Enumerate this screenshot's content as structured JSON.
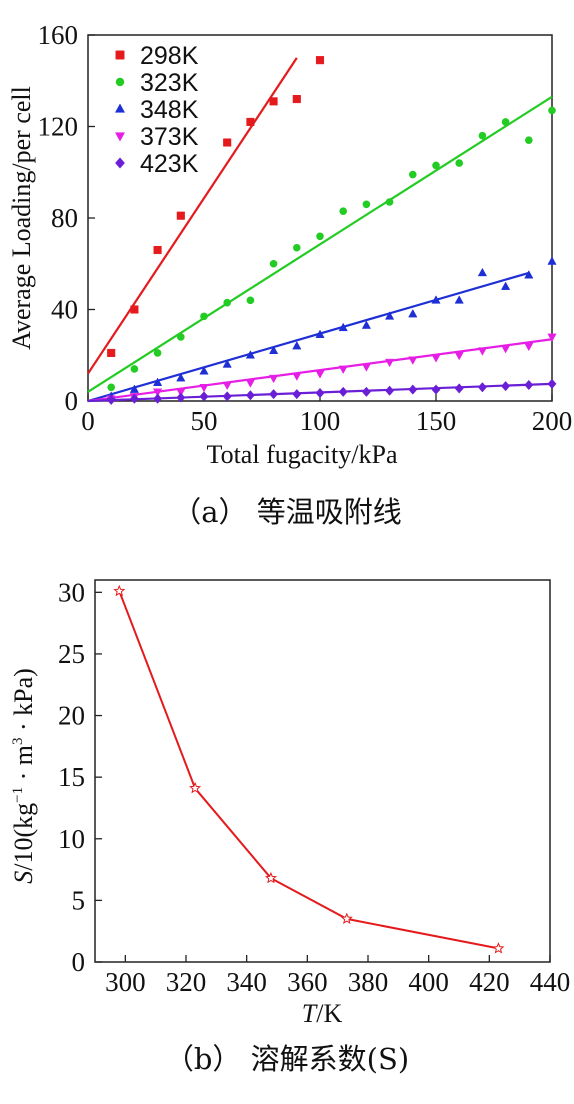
{
  "chart_data": [
    {
      "type": "scatter",
      "panel": "a",
      "caption": "（a）  等温吸附线",
      "xlabel": "Total fugacity/kPa",
      "ylabel": "Average Loading/per cell",
      "xlim": [
        0,
        200
      ],
      "ylim": [
        0,
        160
      ],
      "xticks": [
        0,
        50,
        100,
        150,
        200
      ],
      "yticks": [
        0,
        40,
        80,
        120,
        160
      ],
      "legend_position": "top-left",
      "series": [
        {
          "name": "298K",
          "marker": "square",
          "color": "#e41a1c",
          "x": [
            10,
            20,
            30,
            40,
            60,
            70,
            80,
            90,
            100
          ],
          "y": [
            21,
            40,
            66,
            81,
            113,
            122,
            131,
            132,
            149
          ],
          "fit_line": {
            "x": [
              0,
              90
            ],
            "y": [
              12,
              150
            ]
          }
        },
        {
          "name": "323K",
          "marker": "circle",
          "color": "#22cc22",
          "x": [
            10,
            20,
            30,
            40,
            50,
            60,
            70,
            80,
            90,
            100,
            110,
            120,
            130,
            140,
            150,
            160,
            170,
            180,
            190,
            200
          ],
          "y": [
            6,
            14,
            21,
            28,
            37,
            43,
            44,
            60,
            67,
            72,
            83,
            86,
            87,
            99,
            103,
            104,
            116,
            122,
            114,
            127
          ],
          "fit_line": {
            "x": [
              0,
              200
            ],
            "y": [
              4,
              133
            ]
          }
        },
        {
          "name": "348K",
          "marker": "triangle-up",
          "color": "#1f2fd6",
          "x": [
            10,
            20,
            30,
            40,
            50,
            60,
            70,
            80,
            90,
            100,
            110,
            120,
            130,
            140,
            150,
            160,
            170,
            180,
            190,
            200
          ],
          "y": [
            2,
            5,
            8,
            10,
            13,
            16,
            20,
            22,
            24,
            29,
            32,
            33,
            37,
            38,
            44,
            44,
            56,
            50,
            55,
            61
          ],
          "fit_line": {
            "x": [
              0,
              190
            ],
            "y": [
              0,
              56
            ]
          }
        },
        {
          "name": "373K",
          "marker": "triangle-down",
          "color": "#e61ee6",
          "x": [
            10,
            20,
            30,
            40,
            50,
            60,
            70,
            80,
            90,
            100,
            110,
            120,
            130,
            140,
            150,
            160,
            170,
            180,
            190,
            200
          ],
          "y": [
            1,
            2,
            4,
            4,
            6,
            7,
            8,
            10,
            11,
            12,
            14,
            15,
            17,
            18,
            19,
            20,
            22,
            23,
            24,
            28
          ],
          "fit_line": {
            "x": [
              0,
              200
            ],
            "y": [
              0,
              27
            ]
          }
        },
        {
          "name": "423K",
          "marker": "diamond",
          "color": "#6a1fd6",
          "x": [
            10,
            20,
            30,
            40,
            50,
            60,
            70,
            80,
            90,
            100,
            110,
            120,
            130,
            140,
            150,
            160,
            170,
            180,
            190,
            200
          ],
          "y": [
            0.5,
            1,
            1,
            1.5,
            2,
            2,
            2.5,
            3,
            3,
            3.5,
            4,
            4,
            4.5,
            5,
            5,
            5.5,
            6,
            6.5,
            7,
            7.5
          ],
          "fit_line": {
            "x": [
              0,
              200
            ],
            "y": [
              0,
              7.5
            ]
          }
        }
      ]
    },
    {
      "type": "line",
      "panel": "b",
      "caption": "（b）  溶解系数(S)",
      "xlabel_italic": "T",
      "xlabel_rest": "/K",
      "ylabel_italic": "S",
      "ylabel_rest": "/10(kg",
      "ylabel_sup1": "−1",
      "ylabel_mid": " · m",
      "ylabel_sup2": "3",
      "ylabel_end": " · kPa)",
      "xlim": [
        290,
        440
      ],
      "ylim": [
        0,
        31
      ],
      "xticks": [
        300,
        320,
        340,
        360,
        380,
        400,
        420,
        440
      ],
      "yticks": [
        0,
        5,
        10,
        15,
        20,
        25,
        30
      ],
      "series": [
        {
          "marker": "star",
          "color": "#e41a1c",
          "x": [
            298,
            323,
            348,
            373,
            423
          ],
          "y": [
            30.1,
            14.1,
            6.8,
            3.5,
            1.1
          ]
        }
      ]
    }
  ]
}
